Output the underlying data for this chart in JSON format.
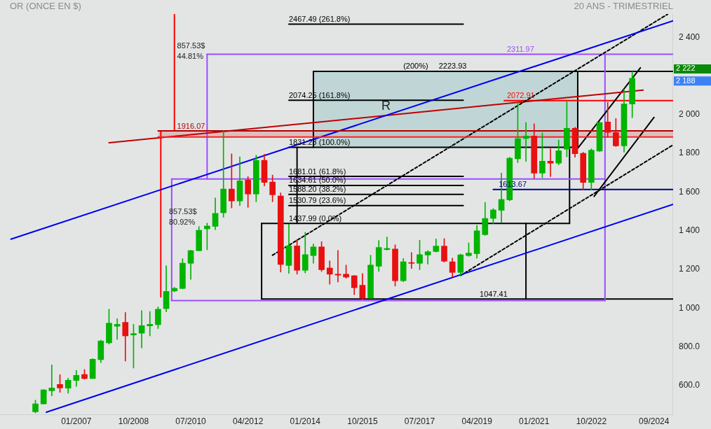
{
  "chart_data": {
    "type": "candlestick",
    "title": "OR (ONCE EN $)",
    "subtitle": "20 ANS - TRIMESTRIEL",
    "x": [
      "2005-10",
      "2006-01",
      "2006-04",
      "2006-07",
      "2006-10",
      "2007-01",
      "2007-04",
      "2007-07",
      "2007-10",
      "2008-01",
      "2008-04",
      "2008-07",
      "2008-10",
      "2009-01",
      "2009-04",
      "2009-07",
      "2009-10",
      "2010-01",
      "2010-04",
      "2010-07",
      "2010-10",
      "2011-01",
      "2011-04",
      "2011-07",
      "2011-10",
      "2012-01",
      "2012-04",
      "2012-07",
      "2012-10",
      "2013-01",
      "2013-04",
      "2013-07",
      "2013-10",
      "2014-01",
      "2014-04",
      "2014-07",
      "2014-10",
      "2015-01",
      "2015-04",
      "2015-07",
      "2015-10",
      "2016-01",
      "2016-04",
      "2016-07",
      "2016-10",
      "2017-01",
      "2017-04",
      "2017-07",
      "2017-10",
      "2018-01",
      "2018-04",
      "2018-07",
      "2018-10",
      "2019-01",
      "2019-04",
      "2019-07",
      "2019-10",
      "2020-01",
      "2020-04",
      "2020-07",
      "2020-10",
      "2021-01",
      "2021-04",
      "2021-07",
      "2021-10",
      "2022-01",
      "2022-04",
      "2022-07",
      "2022-10",
      "2023-01",
      "2023-04",
      "2023-07",
      "2023-10",
      "2024-01"
    ],
    "ohlc": [
      [
        465,
        525,
        460,
        506
      ],
      [
        506,
        580,
        506,
        578
      ],
      [
        574,
        708,
        547,
        588
      ],
      [
        606,
        657,
        565,
        588
      ],
      [
        587,
        639,
        561,
        628
      ],
      [
        627,
        679,
        596,
        653
      ],
      [
        658,
        684,
        633,
        637
      ],
      [
        637,
        740,
        637,
        737
      ],
      [
        734,
        835,
        719,
        831
      ],
      [
        821,
        995,
        815,
        923
      ],
      [
        907,
        946,
        839,
        917
      ],
      [
        927,
        978,
        727,
        857
      ],
      [
        862,
        917,
        691,
        869
      ],
      [
        871,
        988,
        795,
        910
      ],
      [
        909,
        983,
        857,
        917
      ],
      [
        915,
        1007,
        895,
        995
      ],
      [
        998,
        1220,
        981,
        1087
      ],
      [
        1089,
        1108,
        1085,
        1103
      ],
      [
        1102,
        1256,
        1100,
        1233
      ],
      [
        1232,
        1300,
        1149,
        1298
      ],
      [
        1297,
        1422,
        1297,
        1403
      ],
      [
        1410,
        1440,
        1302,
        1425
      ],
      [
        1423,
        1570,
        1406,
        1490
      ],
      [
        1493,
        1916,
        1470,
        1616
      ],
      [
        1616,
        1798,
        1518,
        1554
      ],
      [
        1554,
        1782,
        1530,
        1658
      ],
      [
        1662,
        1680,
        1521,
        1590
      ],
      [
        1590,
        1790,
        1550,
        1764
      ],
      [
        1764,
        1796,
        1632,
        1650
      ],
      [
        1652,
        1688,
        1550,
        1586
      ],
      [
        1580,
        1596,
        1187,
        1226
      ],
      [
        1221,
        1434,
        1180,
        1322
      ],
      [
        1322,
        1356,
        1176,
        1196
      ],
      [
        1196,
        1392,
        1182,
        1277
      ],
      [
        1272,
        1332,
        1232,
        1317
      ],
      [
        1317,
        1344,
        1190,
        1199
      ],
      [
        1208,
        1245,
        1124,
        1176
      ],
      [
        1176,
        1299,
        1136,
        1171
      ],
      [
        1176,
        1223,
        1155,
        1161
      ],
      [
        1168,
        1170,
        1070,
        1106
      ],
      [
        1119,
        1179,
        1046,
        1052
      ],
      [
        1052,
        1274,
        1052,
        1223
      ],
      [
        1217,
        1350,
        1190,
        1314
      ],
      [
        1303,
        1368,
        1300,
        1309
      ],
      [
        1306,
        1328,
        1115,
        1142
      ],
      [
        1142,
        1257,
        1137,
        1240
      ],
      [
        1236,
        1288,
        1205,
        1232
      ],
      [
        1232,
        1351,
        1199,
        1277
      ],
      [
        1275,
        1298,
        1228,
        1292
      ],
      [
        1293,
        1358,
        1290,
        1321
      ],
      [
        1321,
        1360,
        1238,
        1243
      ],
      [
        1240,
        1259,
        1161,
        1185
      ],
      [
        1185,
        1280,
        1166,
        1276
      ],
      [
        1272,
        1338,
        1268,
        1285
      ],
      [
        1282,
        1428,
        1259,
        1400
      ],
      [
        1380,
        1547,
        1377,
        1464
      ],
      [
        1464,
        1515,
        1437,
        1508
      ],
      [
        1506,
        1698,
        1443,
        1562
      ],
      [
        1560,
        1780,
        1555,
        1775
      ],
      [
        1772,
        2064,
        1752,
        1876
      ],
      [
        1877,
        1959,
        1758,
        1890
      ],
      [
        1890,
        1953,
        1671,
        1698
      ],
      [
        1698,
        1906,
        1674,
        1760
      ],
      [
        1760,
        1824,
        1680,
        1749
      ],
      [
        1749,
        1869,
        1740,
        1814
      ],
      [
        1822,
        2068,
        1782,
        1930
      ],
      [
        1930,
        1935,
        1780,
        1798
      ],
      [
        1800,
        1806,
        1612,
        1650
      ],
      [
        1650,
        1824,
        1610,
        1817
      ],
      [
        1812,
        1962,
        1810,
        1959
      ],
      [
        1962,
        2064,
        1887,
        1908
      ],
      [
        1908,
        1980,
        1835,
        1839
      ],
      [
        1839,
        2131,
        1806,
        2055
      ],
      [
        2055,
        2222,
        1984,
        2188
      ]
    ],
    "colors": [
      "#00b400",
      "#00b400",
      "#00b400",
      "#e81010",
      "#00b400",
      "#00b400",
      "#e81010",
      "#00b400",
      "#00b400",
      "#00b400",
      "#00b400",
      "#e81010",
      "#00b400",
      "#00b400",
      "#00b400",
      "#00b400",
      "#00b400",
      "#00b400",
      "#00b400",
      "#00b400",
      "#00b400",
      "#00b400",
      "#00b400",
      "#00b400",
      "#e81010",
      "#00b400",
      "#e81010",
      "#00b400",
      "#e81010",
      "#e81010",
      "#e81010",
      "#00b400",
      "#e81010",
      "#00b400",
      "#00b400",
      "#e81010",
      "#e81010",
      "#e81010",
      "#e81010",
      "#e81010",
      "#e81010",
      "#00b400",
      "#00b400",
      "#00b400",
      "#e81010",
      "#00b400",
      "#e81010",
      "#00b400",
      "#00b400",
      "#00b400",
      "#e81010",
      "#e81010",
      "#00b400",
      "#00b400",
      "#00b400",
      "#00b400",
      "#00b400",
      "#00b400",
      "#00b400",
      "#00b400",
      "#00b400",
      "#e81010",
      "#00b400",
      "#e81010",
      "#00b400",
      "#00b400",
      "#e81010",
      "#e81010",
      "#00b400",
      "#00b400",
      "#e81010",
      "#e81010",
      "#00b400",
      "#00b400"
    ],
    "xlim": [
      "2004-09",
      "2025-04"
    ],
    "xticks": [
      {
        "value": "2007-01",
        "label": "01/2007"
      },
      {
        "value": "2008-10",
        "label": "10/2008"
      },
      {
        "value": "2010-07",
        "label": "07/2010"
      },
      {
        "value": "2012-04",
        "label": "04/2012"
      },
      {
        "value": "2014-01",
        "label": "01/2014"
      },
      {
        "value": "2015-10",
        "label": "10/2015"
      },
      {
        "value": "2017-07",
        "label": "07/2017"
      },
      {
        "value": "2019-04",
        "label": "04/2019"
      },
      {
        "value": "2021-01",
        "label": "01/2021"
      },
      {
        "value": "2022-10",
        "label": "10/2022"
      },
      {
        "value": "2024-09",
        "label": "09/2024"
      }
    ],
    "ylim": [
      450,
      2520
    ],
    "yticks": [
      {
        "value": 600,
        "label": "600.0"
      },
      {
        "value": 800,
        "label": "800.0"
      },
      {
        "value": 1000,
        "label": "1 000"
      },
      {
        "value": 1200,
        "label": "1 200"
      },
      {
        "value": 1400,
        "label": "1 400"
      },
      {
        "value": 1600,
        "label": "1 600"
      },
      {
        "value": 1800,
        "label": "1 800"
      },
      {
        "value": 2000,
        "label": "2 000"
      },
      {
        "value": 2400,
        "label": "2 400"
      }
    ],
    "series": [
      {
        "type": "line",
        "x": [
          "2014-04",
          "2022-05"
        ],
        "values": [
          null,
          null
        ],
        "lower": [
          1831.23,
          1831.23
        ],
        "upper": [
          2223.93,
          2223.93
        ],
        "color": "#a9cccc"
      },
      {
        "type": "line",
        "x": [
          "2009-07",
          "2025-04"
        ],
        "values": [
          null,
          null
        ],
        "lower": [
          1885,
          1885
        ],
        "upper": [
          1916.07,
          1916.07
        ],
        "color": "#d9a3a3"
      },
      {
        "type": "line",
        "x": [
          "2009-07",
          "2025-04"
        ],
        "values": [
          1916.07,
          1916.07
        ],
        "color": "#b00000"
      },
      {
        "type": "line",
        "x": [
          "2009-07",
          "2025-04"
        ],
        "values": [
          1885,
          1885
        ],
        "color": "#ff2020"
      },
      {
        "type": "line",
        "x": [
          "2005-01",
          "2025-04"
        ],
        "values": [
          1357,
          2485
        ],
        "color": "#0000ee"
      },
      {
        "type": "line",
        "x": [
          "2006-02",
          "2025-04"
        ],
        "values": [
          463,
          1537
        ],
        "color": "#0000ee"
      },
      {
        "type": "line",
        "x": [
          "2013-01",
          "2025-02"
        ],
        "values": [
          1274,
          2519
        ],
        "color": "#000000",
        "line_style": "dashed"
      },
      {
        "type": "line",
        "x": [
          "2018-10",
          "2025-04"
        ],
        "values": [
          1169,
          1844
        ],
        "color": "#000000",
        "line_style": "dashed"
      },
      {
        "type": "line",
        "x": [
          "2008-01",
          "2024-05"
        ],
        "values": [
          1855,
          2127
        ],
        "color": "#c00000"
      },
      {
        "type": "line",
        "x": [
          "2022-05",
          "2024-04"
        ],
        "values": [
          1826,
          2242
        ],
        "color": "#000000"
      },
      {
        "type": "line",
        "x": [
          "2022-11",
          "2024-09"
        ],
        "values": [
          1578,
          1986
        ],
        "color": "#000000"
      },
      {
        "type": "line",
        "x": [
          "2019-10",
          "2025-04"
        ],
        "values": [
          1613.67,
          1613.67
        ],
        "color": "#000080"
      },
      {
        "type": "line",
        "x": [
          "2020-02",
          "2025-04"
        ],
        "values": [
          2072.91,
          2072.91
        ],
        "color": "#ff0000"
      },
      {
        "type": "line",
        "x": [
          "2011-01",
          "2025-04"
        ],
        "values": [
          2311.97,
          2311.97
        ],
        "color": "#9b4dff"
      },
      {
        "type": "line",
        "x": [
          "2009-12",
          "2023-03"
        ],
        "values": [
          1668,
          1668
        ],
        "color": "#9b4dff"
      },
      {
        "type": "line",
        "x": [
          "2009-12",
          "2023-03"
        ],
        "values": [
          1040,
          1040
        ],
        "color": "#9b4dff"
      },
      {
        "type": "line",
        "x": [
          "2011-01",
          "2011-01"
        ],
        "values": [
          1668,
          2311.97
        ],
        "color": "#9b4dff"
      },
      {
        "type": "line",
        "x": [
          "2009-12",
          "2009-12"
        ],
        "values": [
          1040,
          1668
        ],
        "color": "#9b4dff"
      },
      {
        "type": "line",
        "x": [
          "2023-03",
          "2023-03"
        ],
        "values": [
          1040,
          2311.97
        ],
        "color": "#9b4dff"
      },
      {
        "type": "line",
        "x": [
          "2014-04",
          "2025-04"
        ],
        "values": [
          2223.93,
          2223.93
        ],
        "color": "#000000"
      },
      {
        "type": "line",
        "x": [
          "2014-04",
          "2014-04"
        ],
        "values": [
          1831.23,
          2223.93
        ],
        "color": "#000000"
      },
      {
        "type": "line",
        "x": [
          "2022-05",
          "2022-05"
        ],
        "values": [
          1831.23,
          2223.93
        ],
        "color": "#000000"
      },
      {
        "type": "line",
        "x": [
          "2013-10",
          "2013-10"
        ],
        "values": [
          1437.99,
          1831.23
        ],
        "color": "#000000"
      },
      {
        "type": "line",
        "x": [
          "2022-02",
          "2022-02"
        ],
        "values": [
          1437.99,
          1831.23
        ],
        "color": "#000000"
      },
      {
        "type": "line",
        "x": [
          "2012-09",
          "2012-09"
        ],
        "values": [
          1047.41,
          1437.99
        ],
        "color": "#000000"
      },
      {
        "type": "line",
        "x": [
          "2020-10",
          "2020-10"
        ],
        "values": [
          1047.41,
          1437.99
        ],
        "color": "#000000"
      },
      {
        "type": "line",
        "x": [
          "2012-09",
          "2025-04"
        ],
        "values": [
          1047.41,
          1047.41
        ],
        "color": "#000000"
      },
      {
        "type": "line",
        "x": [
          "2013-07",
          "2018-11"
        ],
        "values": [
          2467.49,
          2467.49
        ],
        "color": "#000000"
      },
      {
        "type": "line",
        "x": [
          "2013-07",
          "2018-11"
        ],
        "values": [
          2074.25,
          2074.25
        ],
        "color": "#000000"
      },
      {
        "type": "line",
        "x": [
          "2013-07",
          "2022-05"
        ],
        "values": [
          1831.23,
          1831.23
        ],
        "color": "#000000"
      },
      {
        "type": "line",
        "x": [
          "2013-07",
          "2018-11"
        ],
        "values": [
          1681.01,
          1681.01
        ],
        "color": "#000000"
      },
      {
        "type": "line",
        "x": [
          "2013-07",
          "2018-11"
        ],
        "values": [
          1634.61,
          1634.61
        ],
        "color": "#000000"
      },
      {
        "type": "line",
        "x": [
          "2013-07",
          "2018-11"
        ],
        "values": [
          1588.2,
          1588.2
        ],
        "color": "#000000"
      },
      {
        "type": "line",
        "x": [
          "2013-07",
          "2018-11"
        ],
        "values": [
          1530.79,
          1530.79
        ],
        "color": "#000000"
      },
      {
        "type": "line",
        "x": [
          "2012-09",
          "2022-02"
        ],
        "values": [
          1437.99,
          1437.99
        ],
        "color": "#000000"
      },
      {
        "type": "line",
        "x": [
          "2010-01",
          "2010-01"
        ],
        "values": [
          1916.07,
          2520
        ],
        "color": "#ff0000"
      },
      {
        "type": "line",
        "x": [
          "2009-08",
          "2009-08"
        ],
        "values": [
          1058.54,
          1916.07
        ],
        "color": "#ff0000"
      }
    ],
    "annotations": [
      {
        "text": "2467.49 (261.8%)",
        "x": "2013-07",
        "y": 2467.49
      },
      {
        "text": "(200%)",
        "x": "2017-01",
        "y": 2223.93
      },
      {
        "text": "2223.93",
        "x": "2018-02",
        "y": 2223.93
      },
      {
        "text": "2074.25 (161.8%)",
        "x": "2013-07",
        "y": 2074.25
      },
      {
        "text": "1831.23 (100.0%)",
        "x": "2013-07",
        "y": 1831.23
      },
      {
        "text": "1681.01 (61.8%)",
        "x": "2013-07",
        "y": 1681.01
      },
      {
        "text": "1634.61 (50.0%)",
        "x": "2013-07",
        "y": 1634.61
      },
      {
        "text": "1588.20 (38.2%)",
        "x": "2013-07",
        "y": 1588.2
      },
      {
        "text": "1530.79 (23.6%)",
        "x": "2013-07",
        "y": 1530.79
      },
      {
        "text": "1437.99 (0.0%)",
        "x": "2013-07",
        "y": 1437.99
      },
      {
        "text": "2311.97",
        "x": "2020-03",
        "y": 2311.97
      },
      {
        "text": "2072.91",
        "x": "2020-03",
        "y": 2072.91
      },
      {
        "text": "1613.67",
        "x": "2019-12",
        "y": 1613.67
      },
      {
        "text": "1047.41",
        "x": "2019-05",
        "y": 1047.41
      },
      {
        "text": "1916.07",
        "x": "2010-02",
        "y": 1916.07
      },
      {
        "text": "857.53$",
        "x": "2010-02",
        "y": 2330
      },
      {
        "text": "44.81%",
        "x": "2010-02",
        "y": 2276
      },
      {
        "text": "857.53$",
        "x": "2009-11",
        "y": 1472
      },
      {
        "text": "80.92%",
        "x": "2009-11",
        "y": 1418
      },
      {
        "text": "R",
        "x": "2016-05",
        "y": 2005
      },
      "2 222",
      "2 188"
    ]
  }
}
